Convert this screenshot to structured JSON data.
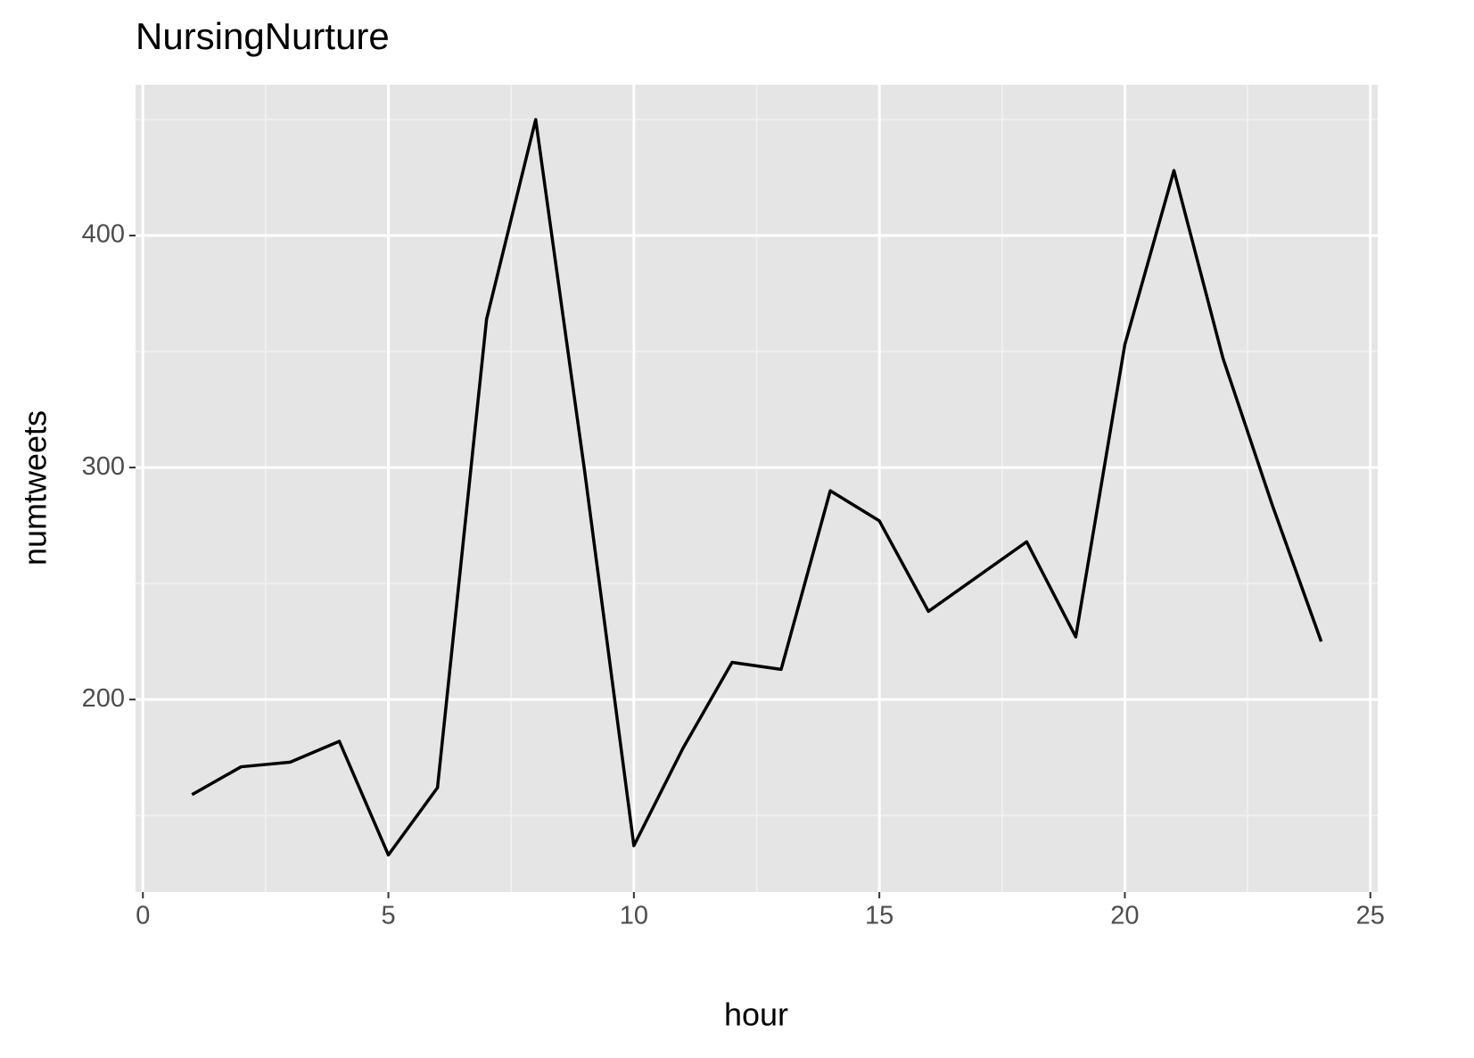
{
  "chart_data": {
    "type": "line",
    "title": "NursingNurture",
    "x_label": "hour",
    "y_label": "numtweets",
    "x": [
      1,
      2,
      3,
      4,
      5,
      6,
      7,
      8,
      9,
      10,
      11,
      12,
      13,
      14,
      15,
      16,
      17,
      18,
      19,
      20,
      21,
      22,
      23,
      24
    ],
    "series": [
      {
        "name": "numtweets",
        "color": "#000000",
        "values": [
          159,
          171,
          173,
          182,
          133,
          162,
          364,
          450,
          298,
          137,
          179,
          216,
          213,
          290,
          277,
          238,
          253,
          268,
          227,
          353,
          428,
          347,
          284,
          225
        ]
      }
    ],
    "xlim": [
      -0.15,
      25.15
    ],
    "ylim": [
      117,
      465
    ],
    "xticks": [
      0,
      5,
      10,
      15,
      20,
      25
    ],
    "yticks": [
      200,
      300,
      400
    ],
    "grid": true
  }
}
